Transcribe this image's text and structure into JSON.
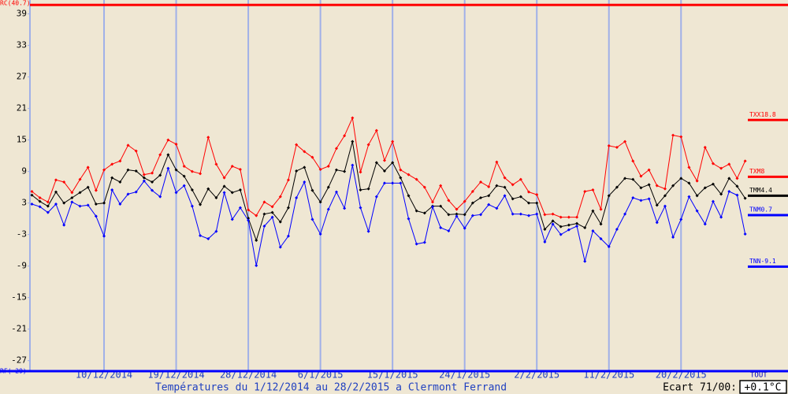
{
  "chart_data": {
    "type": "line",
    "title": "Températures du 1/12/2014 au 28/2/2015 a Clermont Ferrand",
    "categories": [
      null,
      null,
      null,
      null,
      null,
      null,
      null,
      null,
      null,
      "10/12/2014",
      null,
      null,
      null,
      null,
      null,
      null,
      null,
      null,
      "19/12/2014",
      null,
      null,
      null,
      null,
      null,
      null,
      null,
      null,
      "28/12/2014",
      null,
      null,
      null,
      null,
      null,
      null,
      null,
      null,
      "6/1/2015",
      null,
      null,
      null,
      null,
      null,
      null,
      null,
      null,
      "15/1/2015",
      null,
      null,
      null,
      null,
      null,
      null,
      null,
      null,
      "24/1/2015",
      null,
      null,
      null,
      null,
      null,
      null,
      null,
      null,
      "2/2/2015",
      null,
      null,
      null,
      null,
      null,
      null,
      null,
      null,
      "11/2/2015",
      null,
      null,
      null,
      null,
      null,
      null,
      null,
      null,
      "20/2/2015",
      null,
      null,
      null,
      null,
      null,
      null,
      null,
      null
    ],
    "series": [
      {
        "color": "#ff0000",
        "values": [
          5.2,
          4.0,
          3.2,
          7.4,
          7.0,
          5.0,
          7.5,
          9.8,
          5.4,
          9.3,
          10.4,
          11.0,
          14.0,
          12.9,
          8.4,
          8.7,
          12.2,
          15.0,
          14.2,
          10.0,
          9.0,
          8.6,
          15.5,
          10.4,
          7.8,
          10.0,
          9.4,
          1.7,
          0.6,
          3.2,
          2.3,
          4.2,
          7.4,
          14.1,
          12.8,
          11.7,
          9.4,
          10.0,
          13.4,
          15.8,
          19.2,
          8.9,
          14.1,
          16.8,
          11.1,
          14.7,
          9.3,
          8.4,
          7.5,
          6.0,
          3.2,
          6.3,
          3.5,
          1.8,
          3.3,
          5.2,
          7.0,
          6.1,
          10.8,
          7.8,
          6.5,
          7.5,
          5.1,
          4.6,
          0.8,
          0.9,
          0.3,
          0.3,
          0.3,
          5.2,
          5.5,
          1.8,
          13.9,
          13.6,
          14.7,
          11.0,
          8.1,
          9.3,
          6.3,
          5.7,
          15.9,
          15.6,
          9.8,
          7.2,
          13.6,
          10.5,
          9.6,
          10.4,
          7.7,
          11.0
        ]
      },
      {
        "color": "#000000",
        "values": [
          4.5,
          3.3,
          2.4,
          5.1,
          3.0,
          4.0,
          5.0,
          6.0,
          2.8,
          3.0,
          7.8,
          7.0,
          9.3,
          9.1,
          7.8,
          7.0,
          8.3,
          12.2,
          9.3,
          8.1,
          5.5,
          2.7,
          5.7,
          4.0,
          6.2,
          5.0,
          5.5,
          0.1,
          -4.1,
          0.9,
          1.2,
          -0.6,
          2.1,
          9.1,
          9.8,
          5.4,
          3.2,
          6.0,
          9.3,
          9.0,
          14.7,
          5.5,
          5.7,
          10.7,
          9.1,
          10.7,
          7.8,
          4.4,
          1.5,
          1.1,
          2.4,
          2.4,
          0.8,
          0.9,
          0.8,
          3.0,
          4.0,
          4.4,
          6.3,
          6.0,
          3.8,
          4.2,
          3.0,
          3.0,
          -2.0,
          -0.4,
          -1.5,
          -1.2,
          -0.9,
          -1.7,
          1.5,
          -1.0,
          4.4,
          6.0,
          7.7,
          7.5,
          5.9,
          6.5,
          2.6,
          4.4,
          6.3,
          7.7,
          6.8,
          4.4,
          5.9,
          6.6,
          4.7,
          7.7,
          6.2,
          3.9
        ]
      },
      {
        "color": "#0000ff",
        "values": [
          2.8,
          2.3,
          1.2,
          2.8,
          -1.2,
          3.2,
          2.4,
          2.6,
          0.5,
          -3.3,
          5.5,
          2.8,
          4.7,
          5.1,
          7.2,
          5.4,
          4.2,
          9.6,
          5.0,
          6.3,
          2.4,
          -3.2,
          -3.8,
          -2.4,
          5.0,
          -0.1,
          2.1,
          -0.3,
          -8.9,
          -1.4,
          0.3,
          -5.4,
          -3.3,
          4.0,
          7.0,
          -0.1,
          -2.9,
          1.8,
          5.1,
          2.0,
          10.2,
          2.1,
          -2.4,
          4.2,
          6.8,
          6.8,
          6.8,
          0.0,
          -4.8,
          -4.5,
          2.3,
          -1.7,
          -2.3,
          0.5,
          -1.8,
          0.6,
          0.8,
          2.7,
          2.0,
          4.4,
          0.9,
          0.9,
          0.6,
          0.9,
          -4.4,
          -1.0,
          -3.0,
          -2.1,
          -1.4,
          -8.1,
          -2.3,
          -3.8,
          -5.3,
          -2.0,
          0.9,
          4.0,
          3.5,
          3.8,
          -0.7,
          2.4,
          -3.5,
          -0.1,
          4.2,
          1.5,
          -1.0,
          3.3,
          0.3,
          5.2,
          4.5,
          -2.9
        ]
      }
    ],
    "ylim": [
      -29,
      40.7
    ],
    "yticks": [
      39,
      33,
      27,
      21,
      15,
      9,
      3,
      -3,
      -9,
      -15,
      -21,
      -27
    ],
    "limit_lines": [
      {
        "label": "RC(40.7)",
        "value": 40.7,
        "color": "#ff0000"
      },
      {
        "label": "RF(-29)",
        "value": -29,
        "color": "#0000ff"
      }
    ],
    "reference_lines": [
      {
        "label": "TXX18.8",
        "value": 18.8,
        "color": "#ff0000"
      },
      {
        "label": "TXM8",
        "value": 8,
        "color": "#ff0000"
      },
      {
        "label": "TMM4.4",
        "value": 4.4,
        "color": "#000000"
      },
      {
        "label": "TNM0.7",
        "value": 0.7,
        "color": "#0000ff"
      },
      {
        "label": "TNN-9.1",
        "value": -9.1,
        "color": "#0000ff"
      }
    ],
    "range_label": "TOUT"
  },
  "footer": {
    "label": "Ecart 71/00:",
    "value": "+0.1°C"
  }
}
